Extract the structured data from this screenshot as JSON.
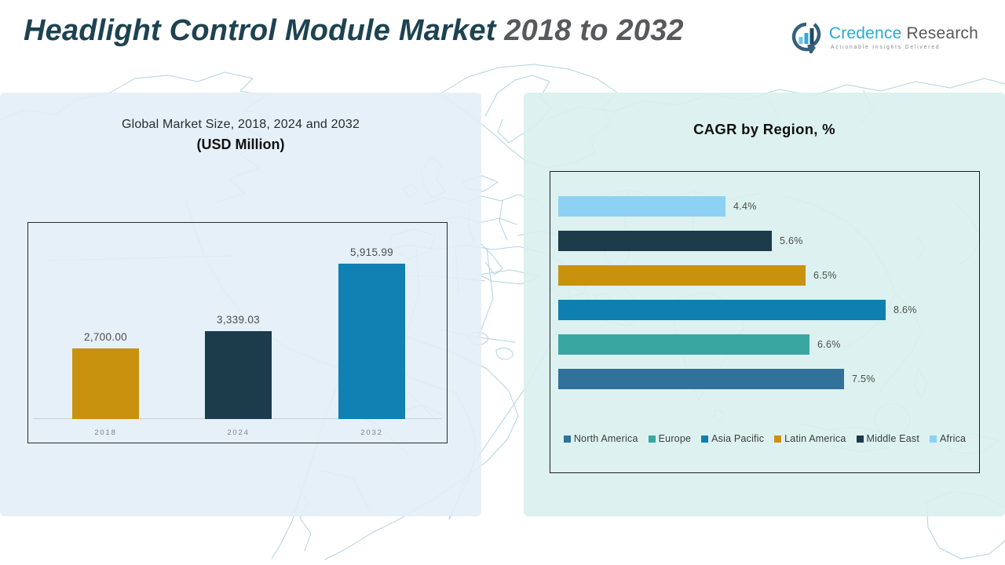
{
  "header": {
    "title_part1": "Headlight Control Module Market",
    "title_part2": " 2018 to 2032",
    "logo": {
      "brand_first": "Credence",
      "brand_second": " Research",
      "tagline": "Actionable Insights Delivered",
      "brand_first_color": "#2ba8d8",
      "brand_second_color": "#58595b"
    }
  },
  "panels": {
    "left": {
      "title_line1": "Global Market Size, 2018, 2024 and 2032",
      "title_line2": "(USD Million)"
    },
    "right": {
      "title": "CAGR by Region, %"
    }
  },
  "chart_data": [
    {
      "type": "bar",
      "orientation": "vertical",
      "title": "Global Market Size, 2018, 2024 and 2032 (USD Million)",
      "categories": [
        "2018",
        "2024",
        "2032"
      ],
      "values": [
        2700.0,
        3339.03,
        5915.99
      ],
      "value_labels": [
        "2,700.00",
        "3,339.03",
        "5,915.99"
      ],
      "bar_colors": [
        "#c8920e",
        "#1c3c4c",
        "#1180b2"
      ],
      "ylabel": "USD Million",
      "ylim": [
        0,
        6200
      ],
      "grid": false,
      "legend_position": "none"
    },
    {
      "type": "bar",
      "orientation": "horizontal",
      "title": "CAGR by Region, %",
      "categories": [
        "Africa",
        "Middle East",
        "Latin America",
        "Asia Pacific",
        "Europe",
        "North America"
      ],
      "values": [
        4.4,
        5.6,
        6.5,
        8.6,
        6.6,
        7.5
      ],
      "value_labels": [
        "4.4%",
        "5.6%",
        "6.5%",
        "8.6%",
        "6.6%",
        "7.5%"
      ],
      "bar_colors": [
        "#8dd2f2",
        "#1c3c4c",
        "#c8920e",
        "#0f7eb0",
        "#3aa6a2",
        "#31719a"
      ],
      "xlim": [
        0,
        9
      ],
      "grid": false,
      "legend_position": "bottom",
      "legend": [
        {
          "label": "North America",
          "color": "#31719a"
        },
        {
          "label": "Europe",
          "color": "#3aa6a2"
        },
        {
          "label": "Asia Pacific",
          "color": "#0f7eb0"
        },
        {
          "label": "Latin America",
          "color": "#c8920e"
        },
        {
          "label": "Middle East",
          "color": "#1c3c4c"
        },
        {
          "label": "Africa",
          "color": "#8dd2f2"
        }
      ]
    }
  ]
}
